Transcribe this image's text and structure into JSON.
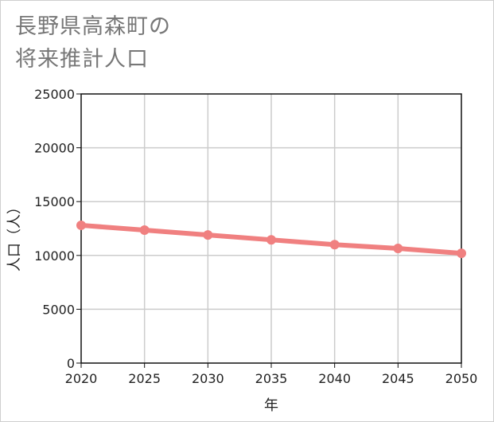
{
  "title_lines": [
    "長野県高森町の",
    "将来推計人口"
  ],
  "chart_data": {
    "type": "line",
    "title": "長野県高森町の将来推計人口",
    "xlabel": "年",
    "ylabel": "人口（人）",
    "x": [
      2020,
      2025,
      2030,
      2035,
      2040,
      2045,
      2050
    ],
    "xticks": [
      "2020",
      "2025",
      "2030",
      "2035",
      "2040",
      "2045",
      "2050"
    ],
    "yticks": [
      "0",
      "5000",
      "10000",
      "15000",
      "20000",
      "25000"
    ],
    "ylim": [
      0,
      25000
    ],
    "xlim": [
      2020,
      2050
    ],
    "grid": true,
    "legend": "none",
    "series": [
      {
        "name": "人口",
        "color": "#f08080",
        "values": [
          12800,
          12350,
          11900,
          11450,
          11000,
          10650,
          10200
        ]
      }
    ]
  }
}
